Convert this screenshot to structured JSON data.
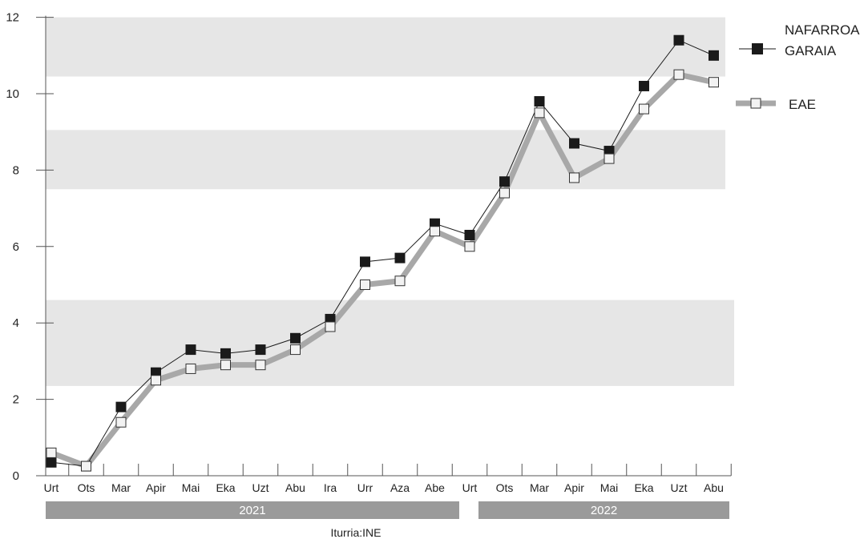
{
  "chart_data": {
    "type": "line",
    "title": "",
    "xlabel": "",
    "ylabel": "",
    "ylim": [
      0,
      12
    ],
    "y_ticks": [
      "0",
      "2",
      "4",
      "6",
      "8",
      "10",
      "12"
    ],
    "categories": [
      "Urt",
      "Ots",
      "Mar",
      "Apir",
      "Mai",
      "Eka",
      "Uzt",
      "Abu",
      "Ira",
      "Urr",
      "Aza",
      "Abe",
      "Urt",
      "Ots",
      "Mar",
      "Apir",
      "Mai",
      "Eka",
      "Uzt",
      "Abu"
    ],
    "years": [
      {
        "label": "2021",
        "months": 12
      },
      {
        "label": "2022",
        "months": 8
      }
    ],
    "series": [
      {
        "name": "NAFARROA GARAIA",
        "legend_lines": [
          "NAFARROA",
          "GARAIA"
        ],
        "color": "#1a1a1a",
        "marker": "filled-square",
        "values": [
          0.35,
          0.25,
          1.8,
          2.7,
          3.3,
          3.2,
          3.3,
          3.6,
          4.1,
          5.6,
          5.7,
          6.6,
          6.3,
          7.7,
          9.8,
          8.7,
          8.5,
          10.2,
          11.4,
          11.0
        ]
      },
      {
        "name": "EAE",
        "legend_lines": [
          "EAE"
        ],
        "color": "#a8a8a8",
        "marker": "open-square",
        "values": [
          0.6,
          0.25,
          1.4,
          2.5,
          2.8,
          2.9,
          2.9,
          3.3,
          3.9,
          5.0,
          5.1,
          6.4,
          6.0,
          7.4,
          9.5,
          7.8,
          8.3,
          9.6,
          10.5,
          10.3
        ]
      }
    ],
    "grid": "alternating horizontal bands",
    "legend_position": "top-right",
    "source": "Iturria:INE"
  }
}
